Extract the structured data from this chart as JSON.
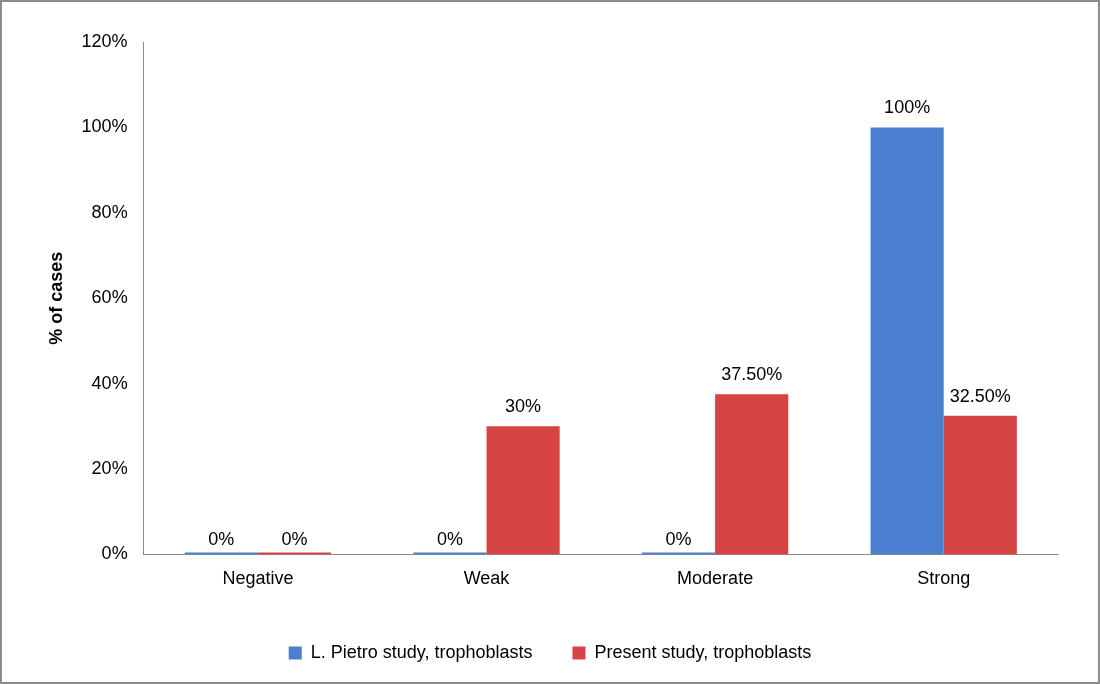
{
  "chart_data": {
    "type": "bar",
    "ylabel": "% of cases",
    "categories": [
      "Negative",
      "Weak",
      "Moderate",
      "Strong"
    ],
    "series": [
      {
        "name": "L. Pietro study, trophoblasts",
        "color": "#4a7fd0",
        "values": [
          0,
          0,
          0,
          100
        ],
        "value_labels": [
          "0%",
          "0%",
          "0%",
          "100%"
        ]
      },
      {
        "name": "Present study, trophoblasts",
        "color": "#d74444",
        "values": [
          0,
          30,
          37.5,
          32.5
        ],
        "value_labels": [
          "0%",
          "30%",
          "37.50%",
          "32.50%"
        ]
      }
    ],
    "ylim": [
      0,
      120
    ],
    "yticks": [
      {
        "value": 0,
        "label": "0%"
      },
      {
        "value": 20,
        "label": "20%"
      },
      {
        "value": 40,
        "label": "40%"
      },
      {
        "value": 60,
        "label": "60%"
      },
      {
        "value": 80,
        "label": "80%"
      },
      {
        "value": 100,
        "label": "100%"
      },
      {
        "value": 120,
        "label": "120%"
      }
    ],
    "grid": false,
    "legend": "bottom"
  }
}
